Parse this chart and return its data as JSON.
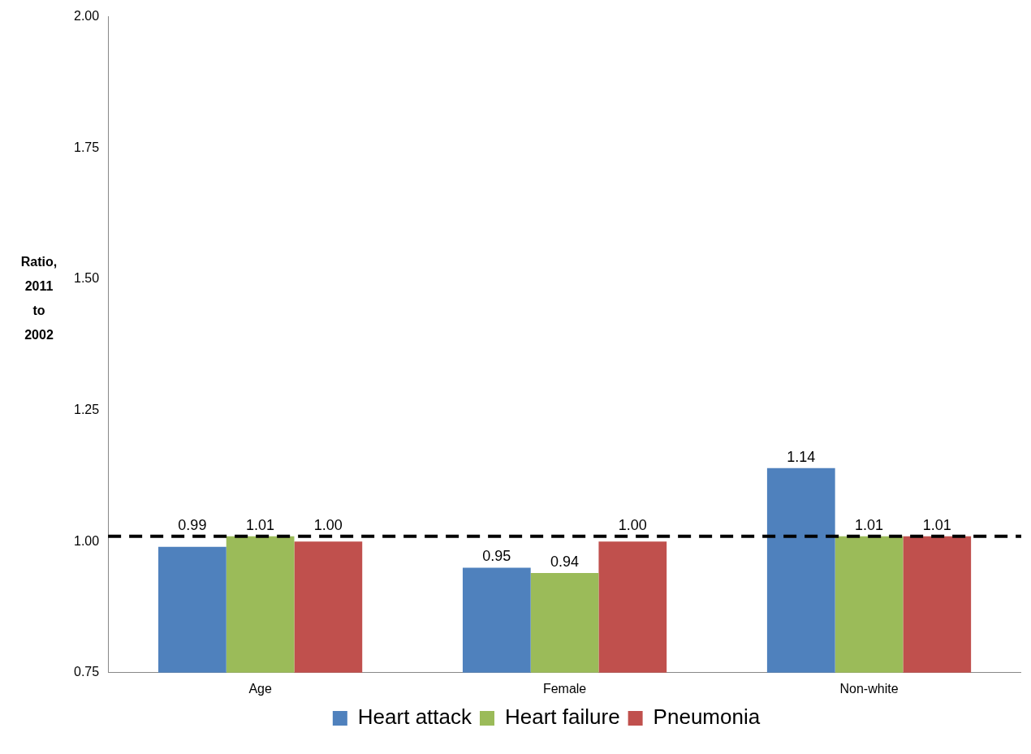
{
  "chart_data": {
    "type": "bar",
    "ylabel": "Ratio, 2011 to 2002",
    "categories": [
      "Age",
      "Female",
      "Non-white"
    ],
    "series": [
      {
        "name": "Heart attack",
        "color": "#4f81bd",
        "values": [
          0.99,
          0.95,
          1.14
        ],
        "value_labels": [
          "0.99",
          "0.95",
          "1.14"
        ]
      },
      {
        "name": "Heart failure",
        "color": "#9bbb59",
        "values": [
          1.01,
          0.94,
          1.01
        ],
        "value_labels": [
          "1.01",
          "0.94",
          "1.01"
        ]
      },
      {
        "name": "Pneumonia",
        "color": "#c0504d",
        "values": [
          1.0,
          1.0,
          1.01
        ],
        "value_labels": [
          "1.00",
          "1.00",
          "1.01"
        ]
      }
    ],
    "ylim": [
      0.75,
      2.0
    ],
    "yticks": [
      {
        "value": 0.75,
        "label": "0.75"
      },
      {
        "value": 1.0,
        "label": "1.00"
      },
      {
        "value": 1.25,
        "label": "1.25"
      },
      {
        "value": 1.5,
        "label": "1.50"
      },
      {
        "value": 1.75,
        "label": "1.75"
      },
      {
        "value": 2.0,
        "label": "2.00"
      }
    ],
    "ref_lines": [
      {
        "axis": "y",
        "value": 1.01,
        "color": "#000000",
        "line_style": "dashed"
      }
    ],
    "grid": false,
    "legend": "bottom"
  }
}
